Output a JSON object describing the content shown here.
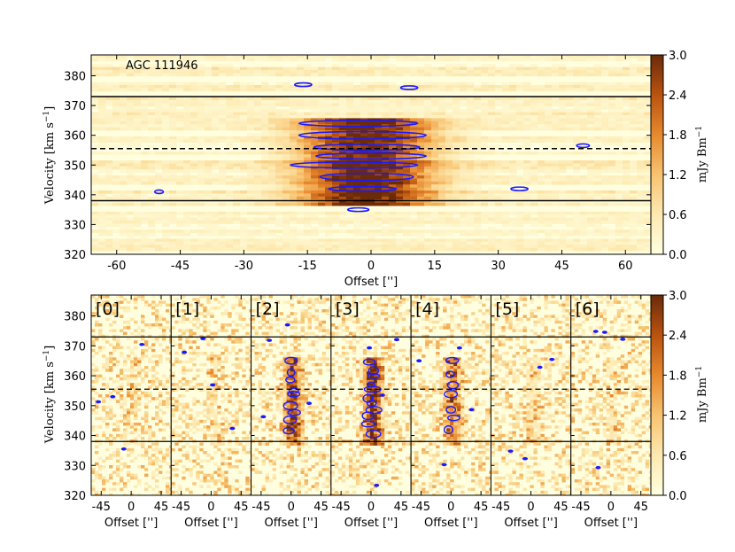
{
  "colors": {
    "cmap_low": "#ffffe0",
    "cmap_high": "#6b2a0a",
    "contour_line": "#1a1aff",
    "line": "#000000"
  },
  "chart_data": [
    {
      "type": "heatmap",
      "id": "main",
      "annotation": "AGC 111946",
      "xlabel": "Offset ['']",
      "ylabel": "Velocity [km s$^{-1}$]",
      "ylabel_display": "Velocity [km s",
      "ylabel_sup": "−1",
      "ylabel_close": "]",
      "xlim": [
        -66,
        66
      ],
      "ylim": [
        320,
        387
      ],
      "xticks": [
        -60,
        -45,
        -30,
        -15,
        0,
        15,
        30,
        45,
        60
      ],
      "yticks": [
        320,
        330,
        340,
        350,
        360,
        370,
        380
      ],
      "hlines_solid": [
        373,
        338
      ],
      "hline_dashed": 355.5,
      "colorbar": {
        "label": "mJy Bm",
        "label_sup": "−1",
        "range": [
          0.0,
          3.0
        ],
        "ticks": [
          "0.0",
          "0.6",
          "1.2",
          "1.8",
          "2.4",
          "3.0"
        ]
      },
      "emission": {
        "center_offset": -2,
        "center_velocity": 352,
        "width_offset": 14,
        "velocity_range": [
          337,
          366
        ],
        "peak": 3.0
      },
      "contours": [
        {
          "x": -3,
          "y": 364,
          "w": 28,
          "h": 2
        },
        {
          "x": -2,
          "y": 360,
          "w": 30,
          "h": 2.5
        },
        {
          "x": -1,
          "y": 356,
          "w": 25,
          "h": 2
        },
        {
          "x": 0,
          "y": 353,
          "w": 26,
          "h": 2
        },
        {
          "x": -4,
          "y": 350,
          "w": 30,
          "h": 2
        },
        {
          "x": -1,
          "y": 346,
          "w": 22,
          "h": 2.5
        },
        {
          "x": -2,
          "y": 342,
          "w": 16,
          "h": 1.5
        },
        {
          "x": -3,
          "y": 335,
          "w": 5,
          "h": 1
        },
        {
          "x": -16,
          "y": 377,
          "w": 4,
          "h": 0.7
        },
        {
          "x": 9,
          "y": 376,
          "w": 4,
          "h": 0.8
        },
        {
          "x": 50,
          "y": 356.5,
          "w": 3,
          "h": 0.7
        },
        {
          "x": 35,
          "y": 342,
          "w": 4,
          "h": 0.7
        },
        {
          "x": -50,
          "y": 341,
          "w": 2,
          "h": 0.6
        }
      ]
    },
    {
      "type": "heatmap",
      "id": "panels",
      "panel_labels": [
        "[0]",
        "[1]",
        "[2]",
        "[3]",
        "[4]",
        "[5]",
        "[6]"
      ],
      "xlabel": "Offset ['']",
      "ylabel": "Velocity [km s$^{-1}$]",
      "ylabel_display": "Velocity [km s",
      "ylabel_sup": "−1",
      "ylabel_close": "]",
      "xlim": [
        -60,
        60
      ],
      "ylim": [
        320,
        387
      ],
      "xticks": [
        -45,
        0,
        45
      ],
      "yticks": [
        320,
        330,
        340,
        350,
        360,
        370,
        380
      ],
      "hlines_solid": [
        373,
        338
      ],
      "hline_dashed": 355.5,
      "colorbar": {
        "label": "mJy Bm",
        "label_sup": "−1",
        "range": [
          0.0,
          3.0
        ],
        "ticks": [
          "0.0",
          "0.6",
          "1.2",
          "1.8",
          "2.4",
          "3.0"
        ]
      },
      "emission_strength": [
        0.15,
        0.15,
        0.75,
        0.95,
        0.55,
        0.2,
        0.15
      ]
    }
  ]
}
